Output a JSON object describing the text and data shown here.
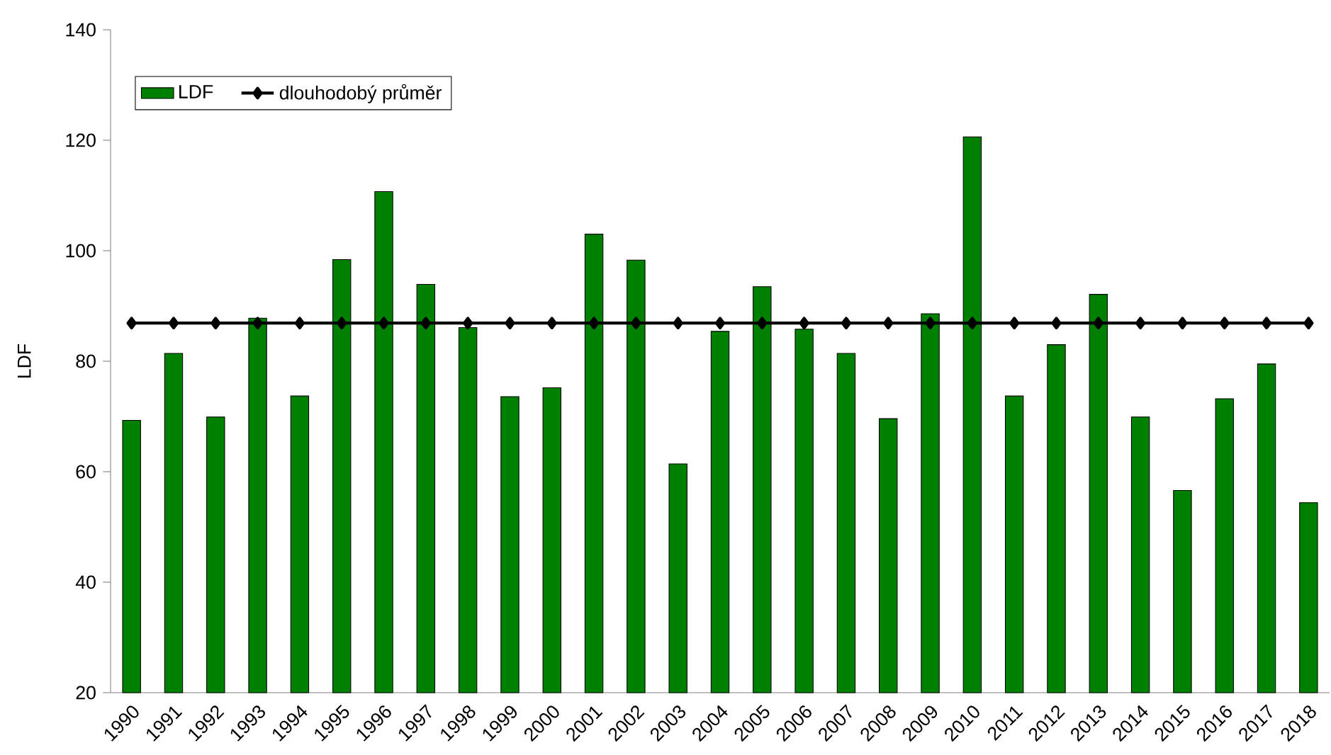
{
  "chart_data": {
    "type": "bar",
    "ylabel": "LDF",
    "categories": [
      "1990",
      "1991",
      "1992",
      "1993",
      "1994",
      "1995",
      "1996",
      "1997",
      "1998",
      "1999",
      "2000",
      "2001",
      "2002",
      "2003",
      "2004",
      "2005",
      "2006",
      "2007",
      "2008",
      "2009",
      "2010",
      "2011",
      "2012",
      "2013",
      "2014",
      "2015",
      "2016",
      "2017",
      "2018"
    ],
    "series": [
      {
        "name": "LDF",
        "color": "#008000",
        "values": [
          69.3,
          81.4,
          69.9,
          87.8,
          73.7,
          98.4,
          110.7,
          93.9,
          86.1,
          73.6,
          75.2,
          103.0,
          98.3,
          61.4,
          85.4,
          93.5,
          85.8,
          81.4,
          69.6,
          88.6,
          120.6,
          73.7,
          83.0,
          92.1,
          69.9,
          56.6,
          73.2,
          79.5,
          54.4
        ]
      },
      {
        "name": "dlouhodobý průměr",
        "type": "line",
        "color": "#000000",
        "marker": "diamond",
        "values": [
          86.9,
          86.9,
          86.9,
          86.9,
          86.9,
          86.9,
          86.9,
          86.9,
          86.9,
          86.9,
          86.9,
          86.9,
          86.9,
          86.9,
          86.9,
          86.9,
          86.9,
          86.9,
          86.9,
          86.9,
          86.9,
          86.9,
          86.9,
          86.9,
          86.9,
          86.9,
          86.9,
          86.9,
          86.9
        ]
      }
    ],
    "ylim": [
      20,
      140
    ],
    "yticks": [
      20,
      40,
      60,
      80,
      100,
      120,
      140
    ],
    "legend": "top left"
  }
}
